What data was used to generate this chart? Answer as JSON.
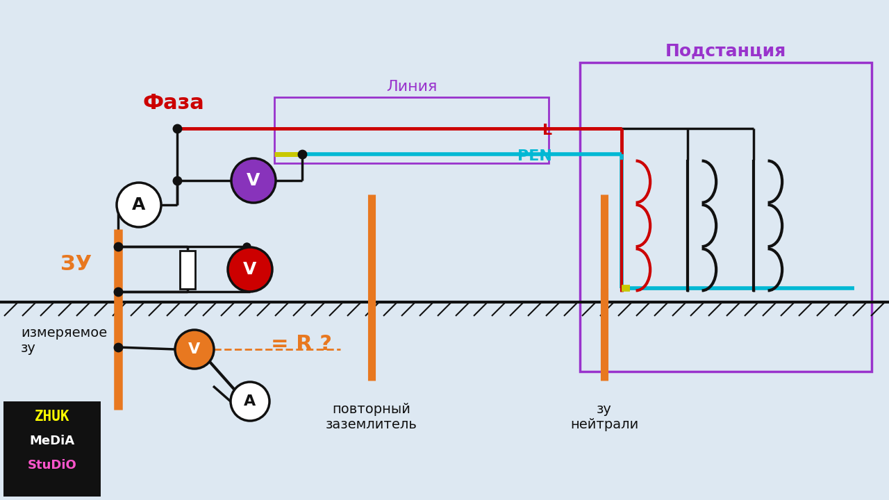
{
  "bg_color": "#dde8f2",
  "faza_label": "Фаза",
  "liniya_label": "Линия",
  "podstantsiya_label": "Подстанция",
  "PEN_label": "PEN",
  "L_label": "L",
  "ZU_label": "ЗУ",
  "izmer_label": "измеряемое\nзу",
  "povtorniy_label": "повторный\nзаземлитель",
  "ZU_neytral_label": "зу\nнейтрали",
  "R_label": "= R ?",
  "red": "#cc0000",
  "purple_meter": "#8833bb",
  "purple_box": "#9933cc",
  "cyan": "#00b8d4",
  "orange": "#e87820",
  "yellow_green": "#c8c800",
  "black": "#111111",
  "white": "#ffffff"
}
